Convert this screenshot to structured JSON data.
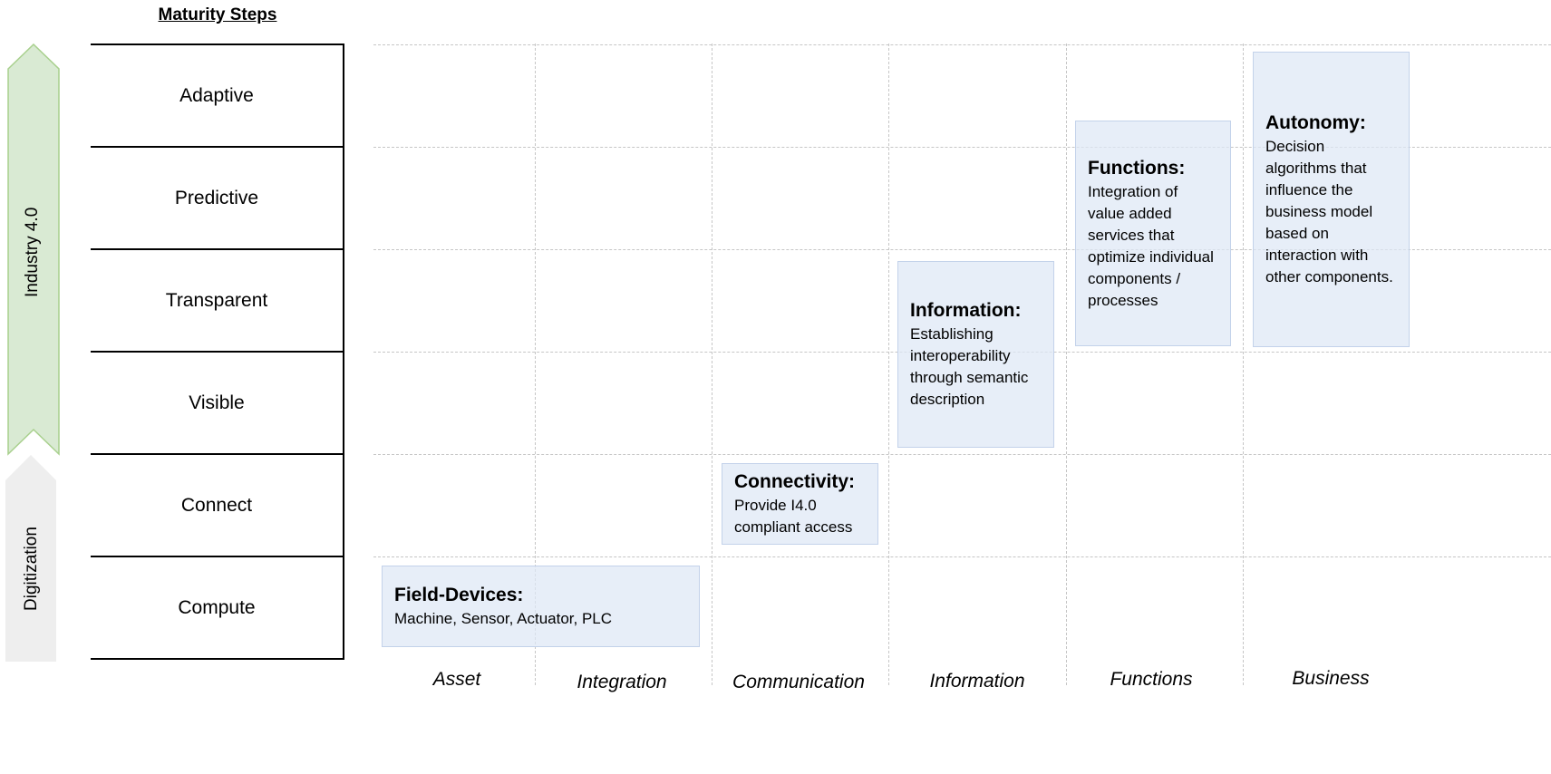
{
  "title": "Maturity Steps",
  "arrows": {
    "upper": "Industry 4.0",
    "lower": "Digitization"
  },
  "steps": [
    "Adaptive",
    "Predictive",
    "Transparent",
    "Visible",
    "Connect",
    "Compute"
  ],
  "axis_labels": [
    "Asset",
    "Integration",
    "Communication",
    "Information",
    "Functions",
    "Business"
  ],
  "cells": {
    "field_devices": {
      "title": "Field-Devices:",
      "desc": "Machine, Sensor, Actuator, PLC"
    },
    "connectivity": {
      "title": "Connectivity:",
      "desc": "Provide I4.0 compliant access"
    },
    "information": {
      "title": "Information:",
      "desc": "Establishing interoperability through semantic description"
    },
    "functions": {
      "title": "Functions:",
      "desc": "Integration of value added services that optimize individual components / processes"
    },
    "autonomy": {
      "title": "Autonomy:",
      "desc": "Decision algorithms that influence the business model based on interaction with other components."
    }
  },
  "colors": {
    "industry_arrow_fill": "#d9ead3",
    "industry_arrow_stroke": "#a8d08d",
    "digitization_arrow_fill": "#eeeeee",
    "cell_fill": "#dee7f5",
    "cell_border": "#c3d2ea",
    "grid_line": "#c6c6c6"
  }
}
